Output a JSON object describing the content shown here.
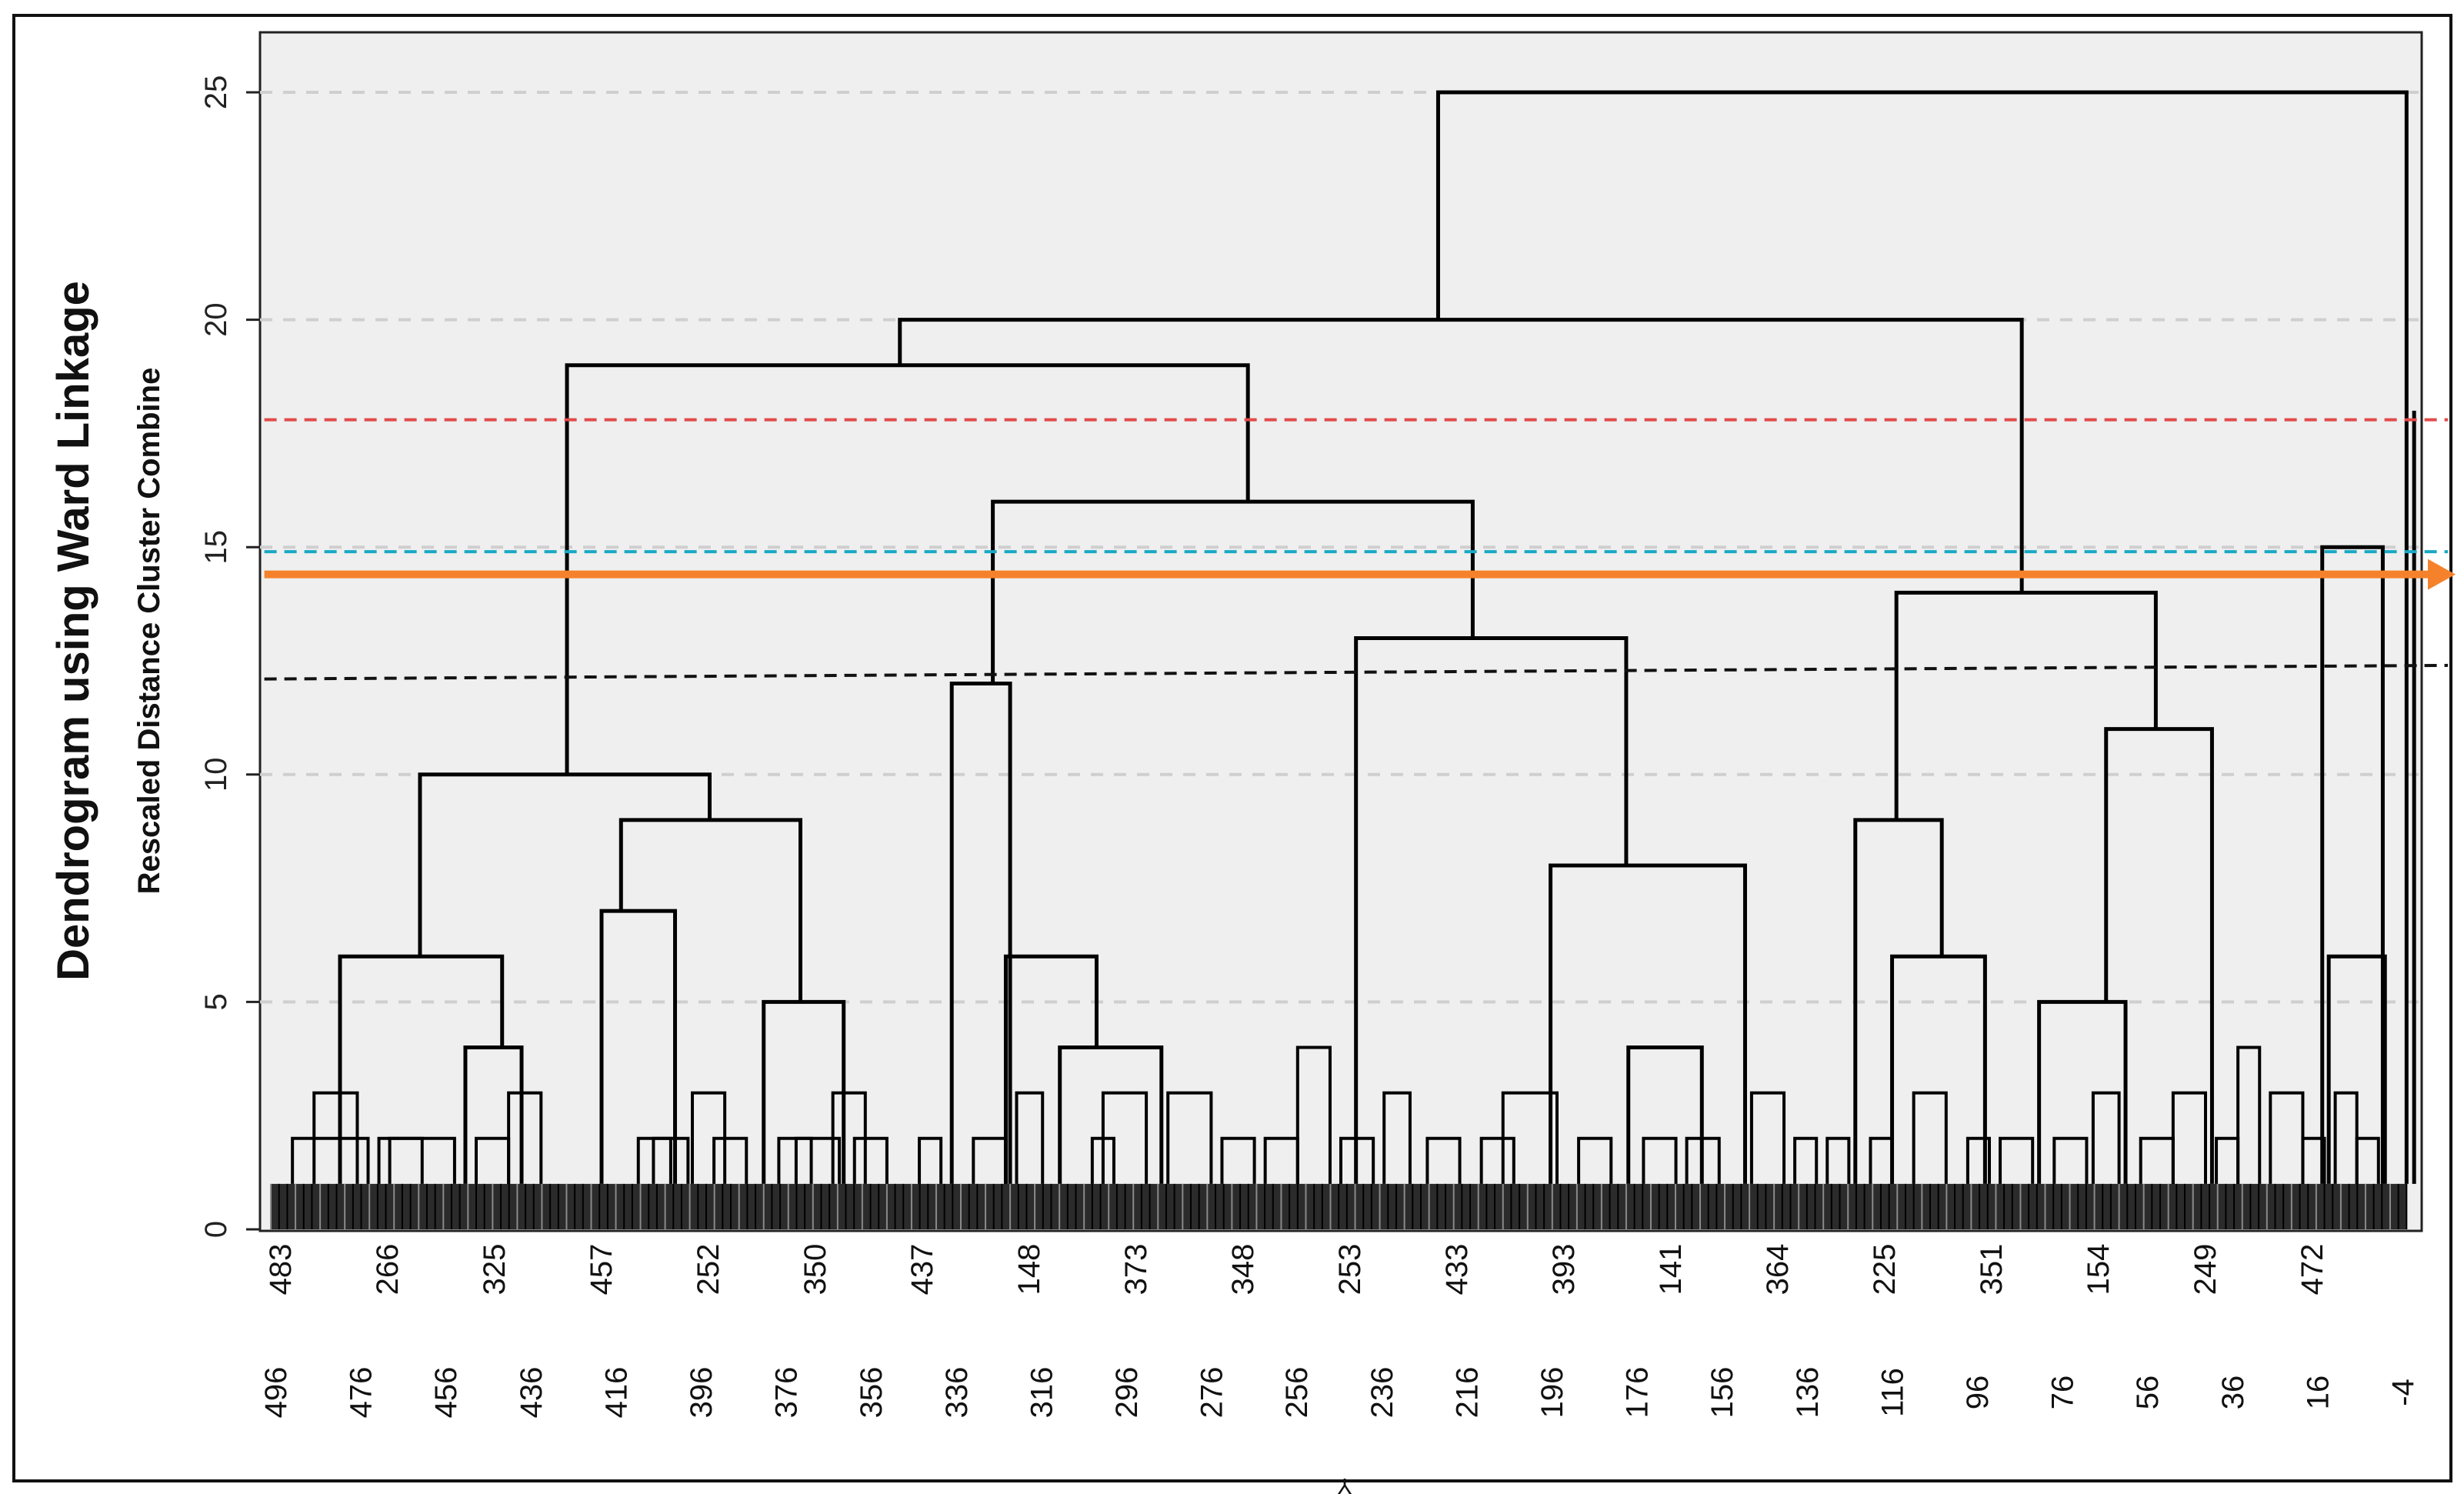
{
  "chart_data": {
    "type": "dendrogram",
    "title": "Dendrogram using Ward Linkage",
    "ylabel": "Rescaled Distance Cluster Combine",
    "ylim": [
      0,
      25
    ],
    "y_ticks": [
      0,
      5,
      10,
      15,
      20,
      25
    ],
    "grid": true,
    "leaf_labels_row1": [
      "483",
      "266",
      "325",
      "457",
      "252",
      "350",
      "437",
      "148",
      "373",
      "348",
      "253",
      "433",
      "393",
      "141",
      "364",
      "225",
      "351",
      "154",
      "249",
      "472"
    ],
    "leaf_labels_row2": [
      "496",
      "476",
      "456",
      "436",
      "416",
      "396",
      "376",
      "356",
      "336",
      "316",
      "296",
      "276",
      "256",
      "236",
      "216",
      "196",
      "176",
      "156",
      "136",
      "116",
      "96",
      "76",
      "56",
      "36",
      "16",
      "-4"
    ],
    "bottom_mark": "Y",
    "cut_lines": [
      {
        "name": "red-dashed",
        "y_start": 17.8,
        "y_end": 17.8,
        "color": "#e24a4a",
        "style": "dashed"
      },
      {
        "name": "cyan-dashed",
        "y_start": 14.9,
        "y_end": 14.9,
        "color": "#19a9c4",
        "style": "dashed"
      },
      {
        "name": "orange-arrow",
        "y_start": 14.4,
        "y_end": 14.4,
        "color": "#f5822a",
        "style": "solid-arrow"
      },
      {
        "name": "black-dashed",
        "y_start": 12.1,
        "y_end": 12.4,
        "color": "#111111",
        "style": "dashed"
      }
    ],
    "links": [
      {
        "x1": 0.545,
        "x2": 0.993,
        "y": 25
      },
      {
        "x1": 0.296,
        "x2": 0.815,
        "y": 20
      },
      {
        "x1": 0.954,
        "x2": 0.982,
        "y": 15
      },
      {
        "x1": 0.142,
        "x2": 0.457,
        "y": 19
      },
      {
        "x1": 0.339,
        "x2": 0.561,
        "y": 16
      },
      {
        "x1": 0.757,
        "x2": 0.877,
        "y": 14
      },
      {
        "x1": 0.507,
        "x2": 0.632,
        "y": 13
      },
      {
        "x1": 0.32,
        "x2": 0.347,
        "y": 12
      },
      {
        "x1": 0.738,
        "x2": 0.778,
        "y": 9
      },
      {
        "x1": 0.854,
        "x2": 0.903,
        "y": 11
      },
      {
        "x1": 0.074,
        "x2": 0.208,
        "y": 10
      },
      {
        "x1": 0.167,
        "x2": 0.25,
        "y": 9
      },
      {
        "x1": 0.597,
        "x2": 0.687,
        "y": 8
      },
      {
        "x1": 0.158,
        "x2": 0.192,
        "y": 7
      },
      {
        "x1": 0.037,
        "x2": 0.112,
        "y": 6
      },
      {
        "x1": 0.345,
        "x2": 0.387,
        "y": 6
      },
      {
        "x1": 0.755,
        "x2": 0.798,
        "y": 6
      },
      {
        "x1": 0.823,
        "x2": 0.863,
        "y": 5
      },
      {
        "x1": 0.957,
        "x2": 0.983,
        "y": 6
      },
      {
        "x1": 0.233,
        "x2": 0.27,
        "y": 5
      },
      {
        "x1": 0.633,
        "x2": 0.667,
        "y": 4
      },
      {
        "x1": 0.095,
        "x2": 0.121,
        "y": 4
      },
      {
        "x1": 0.37,
        "x2": 0.417,
        "y": 4
      }
    ]
  }
}
